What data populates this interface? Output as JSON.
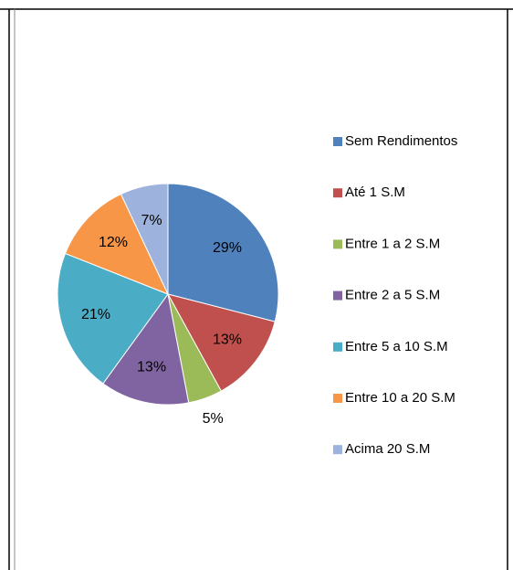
{
  "chart_data": {
    "type": "pie",
    "categories": [
      "Sem Rendimentos",
      "Até 1 S.M",
      "Entre 1 a 2 S.M",
      "Entre 2 a 5 S.M",
      "Entre 5 a 10 S.M",
      "Entre 10 a 20 S.M",
      "Acima 20 S.M"
    ],
    "values": [
      29,
      13,
      5,
      13,
      21,
      12,
      7
    ],
    "value_labels": [
      "29%",
      "13%",
      "5%",
      "13%",
      "21%",
      "12%",
      "7%"
    ],
    "colors": [
      "#4f81bd",
      "#c0504d",
      "#9bbb59",
      "#8064a2",
      "#4bacc6",
      "#f79646",
      "#9db2dc"
    ],
    "legend": "right"
  }
}
